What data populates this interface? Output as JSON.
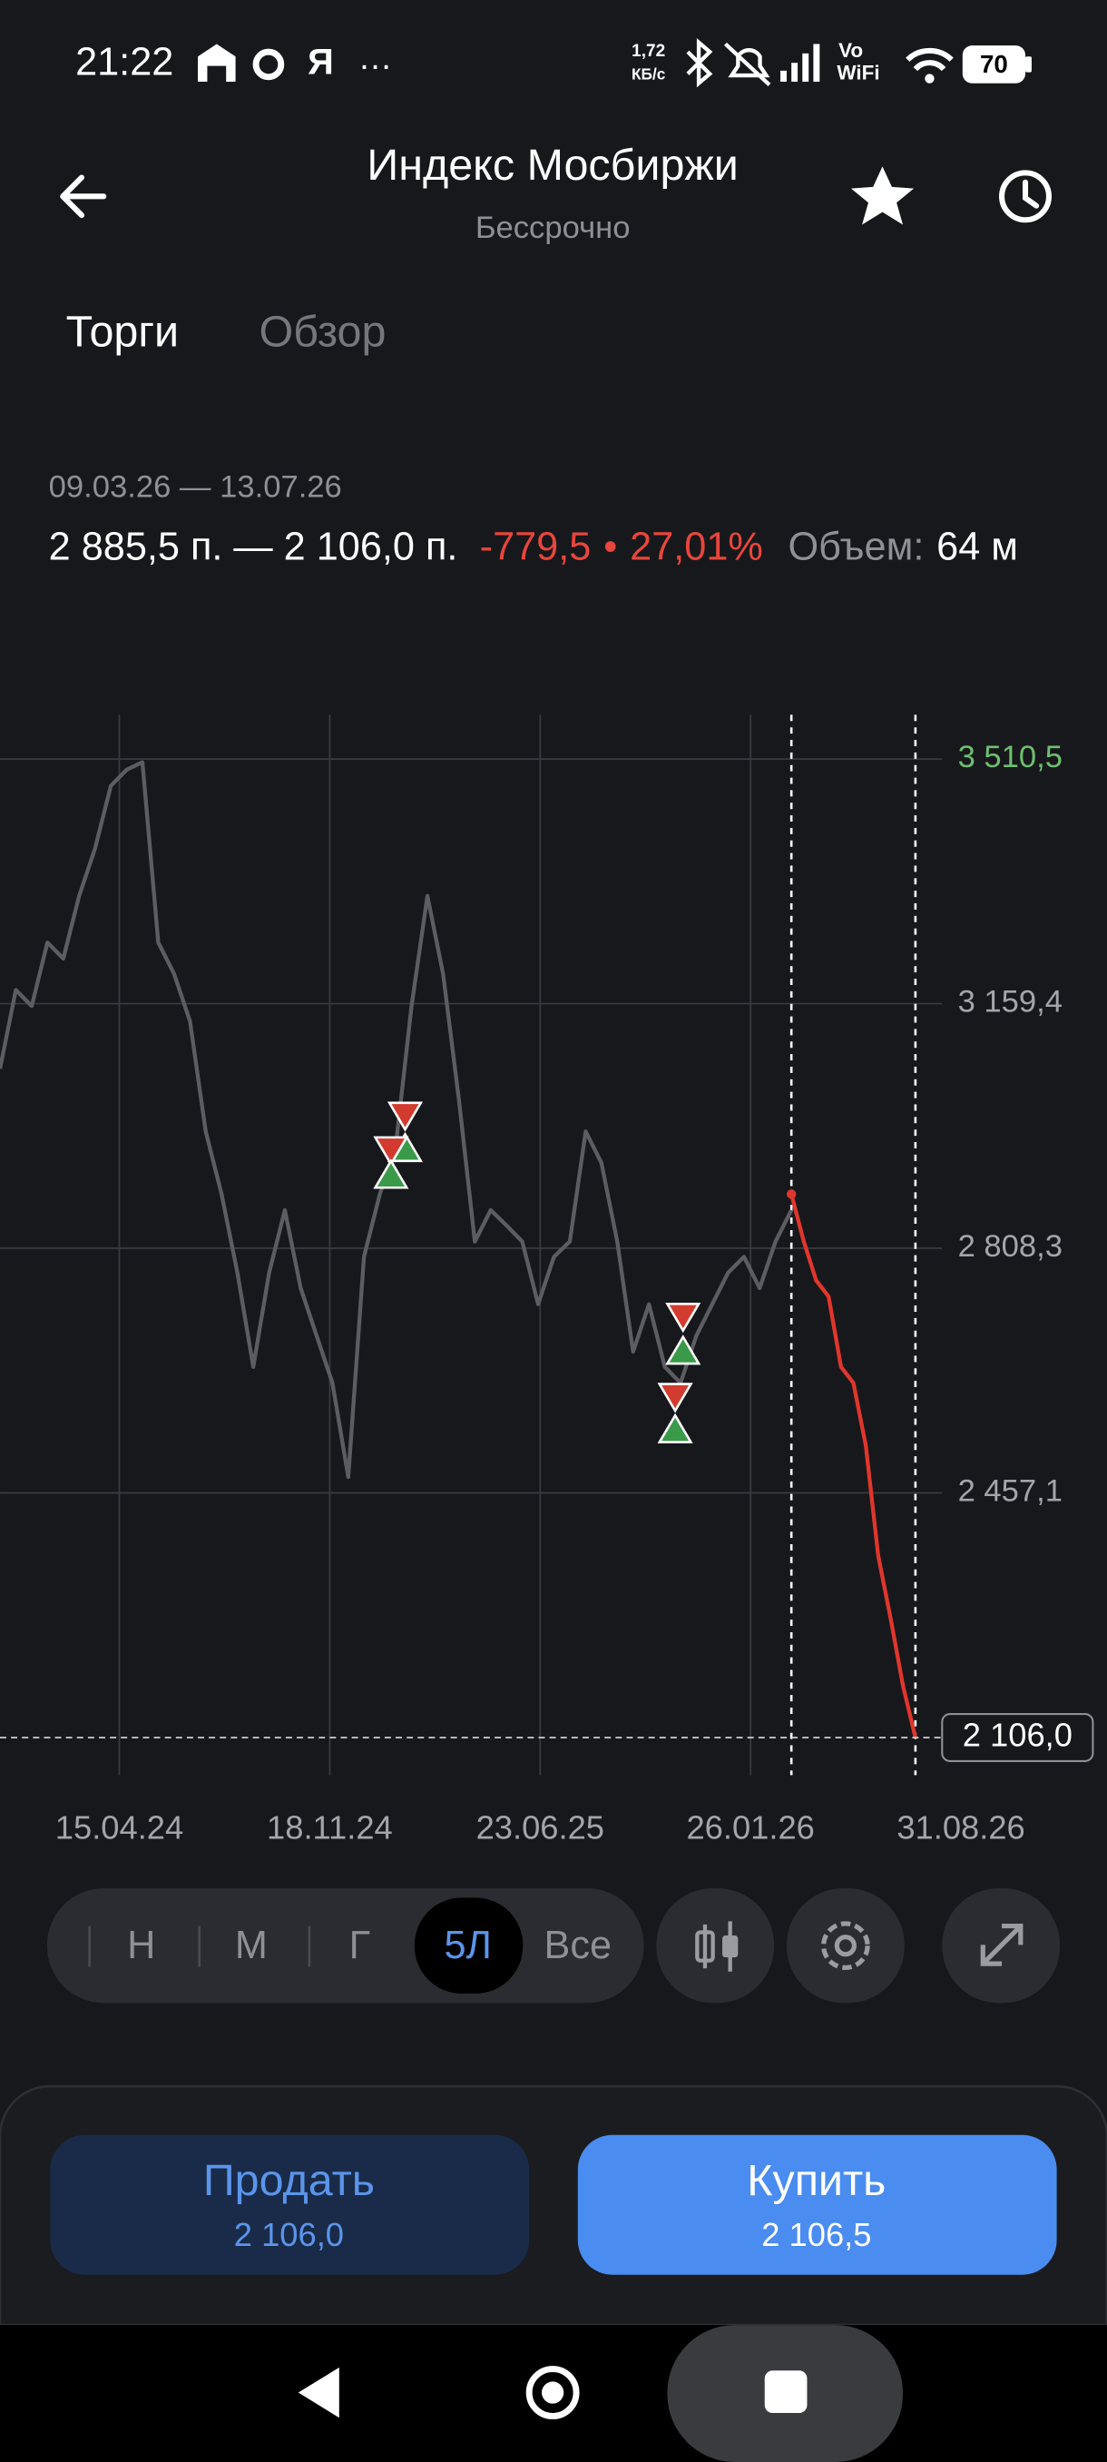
{
  "status": {
    "time": "21:22",
    "ya": "Я",
    "dots": "…",
    "speed": "1,72",
    "speed_unit": "КБ/с",
    "vo": "Vo",
    "wifi": "WiFi",
    "battery": "70"
  },
  "header": {
    "title": "Индекс Мосбиржи",
    "subtitle": "Бессрочно"
  },
  "tabs": [
    "Торги",
    "Обзор"
  ],
  "summary": {
    "period": "09.03.26 — 13.07.26",
    "prices": "2 885,5 п. — 2 106,0 п.",
    "change": "-779,5",
    "dot": "•",
    "change_pct": "27,01%",
    "volume_label": "Объем:",
    "volume": "64 м"
  },
  "chart_data": {
    "type": "line",
    "ylim": [
      2052,
      3574
    ],
    "yticks": [
      {
        "value": 3510.5,
        "label": "3 510,5"
      },
      {
        "value": 3159.4,
        "label": "3 159,4"
      },
      {
        "value": 2808.3,
        "label": "2 808,3"
      },
      {
        "value": 2457.1,
        "label": "2 457,1"
      }
    ],
    "x_labels": [
      "15.04.24",
      "18.11.24",
      "23.06.25",
      "26.01.26",
      "31.08.26"
    ],
    "current": {
      "value": 2106.0,
      "label": "2 106,0"
    },
    "grid": true,
    "series": [
      {
        "color": "#5c5d62",
        "values": [
          3066,
          3179,
          3156,
          3247,
          3224,
          3314,
          3382,
          3472,
          3495,
          3506,
          3247,
          3202,
          3134,
          2976,
          2886,
          2773,
          2638,
          2773,
          2863,
          2751,
          2683,
          2615,
          2480,
          2796,
          2886,
          2954,
          3156,
          3314,
          3202,
          3021,
          2818,
          2863,
          2841,
          2818,
          2728,
          2796,
          2818,
          2976,
          2931,
          2818,
          2660,
          2728,
          2638,
          2615,
          2683,
          2728,
          2773,
          2796,
          2751,
          2818,
          2863
        ]
      },
      {
        "color": "#e0362c",
        "values": [
          2886,
          2818,
          2762,
          2739,
          2638,
          2615,
          2525,
          2367,
          2277,
          2180,
          2106
        ]
      }
    ]
  },
  "periods": [
    "Н",
    "М",
    "Г",
    "5Л",
    "Все"
  ],
  "actions": {
    "sell": "Продать",
    "sell_price": "2 106,0",
    "buy": "Купить",
    "buy_price": "2 106,5"
  }
}
